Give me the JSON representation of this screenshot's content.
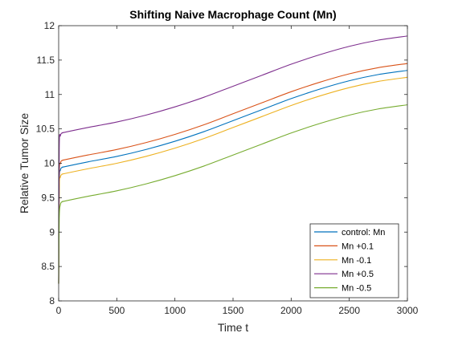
{
  "chart_data": {
    "type": "line",
    "title": "Shifting Naive Macrophage Count (Mn)",
    "xlabel": "Time t",
    "ylabel": "Relative Tumor Size",
    "xlim": [
      0,
      3000
    ],
    "ylim": [
      8,
      12
    ],
    "xticks": [
      0,
      500,
      1000,
      1500,
      2000,
      2500,
      3000
    ],
    "yticks": [
      8,
      8.5,
      9,
      9.5,
      10,
      10.5,
      11,
      11.5,
      12
    ],
    "grid": false,
    "legend_position": "bottom-right",
    "x": [
      0,
      5,
      15,
      30,
      50,
      250,
      500,
      750,
      1000,
      1250,
      1500,
      1750,
      2000,
      2250,
      2500,
      2750,
      3000
    ],
    "series": [
      {
        "name": "control: Mn",
        "color": "#0072BD",
        "values": [
          8.25,
          9.7,
          9.9,
          9.94,
          9.95,
          10.02,
          10.1,
          10.2,
          10.32,
          10.46,
          10.62,
          10.78,
          10.94,
          11.08,
          11.2,
          11.29,
          11.35
        ]
      },
      {
        "name": "Mn +0.1",
        "color": "#D95319",
        "values": [
          8.25,
          9.8,
          10.0,
          10.04,
          10.05,
          10.12,
          10.2,
          10.3,
          10.42,
          10.56,
          10.72,
          10.88,
          11.04,
          11.18,
          11.3,
          11.39,
          11.45
        ]
      },
      {
        "name": "Mn -0.1",
        "color": "#EDB120",
        "values": [
          8.25,
          9.6,
          9.8,
          9.84,
          9.85,
          9.92,
          10.0,
          10.1,
          10.22,
          10.36,
          10.52,
          10.68,
          10.84,
          10.98,
          11.1,
          11.19,
          11.25
        ]
      },
      {
        "name": "Mn +0.5",
        "color": "#7E2F8E",
        "values": [
          8.25,
          10.2,
          10.4,
          10.44,
          10.45,
          10.52,
          10.6,
          10.7,
          10.82,
          10.96,
          11.12,
          11.28,
          11.44,
          11.58,
          11.7,
          11.79,
          11.85
        ]
      },
      {
        "name": "Mn -0.5",
        "color": "#77AC30",
        "values": [
          8.25,
          9.2,
          9.4,
          9.44,
          9.45,
          9.52,
          9.6,
          9.7,
          9.82,
          9.96,
          10.12,
          10.28,
          10.44,
          10.58,
          10.7,
          10.79,
          10.85
        ]
      }
    ]
  }
}
